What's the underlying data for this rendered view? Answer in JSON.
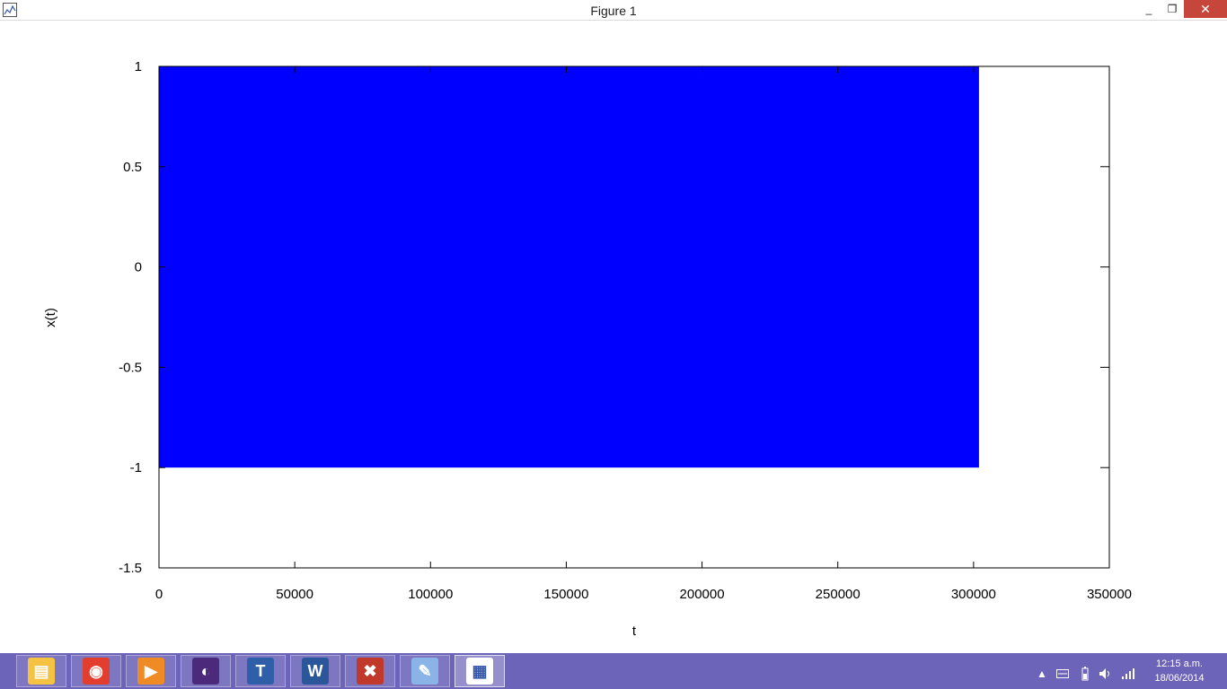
{
  "window": {
    "title": "Figure 1",
    "minimize": "_",
    "maximize": "❐",
    "close": "✕"
  },
  "chart_data": {
    "type": "line",
    "xlabel": "t",
    "ylabel": "x(t)",
    "xlim": [
      0,
      350000
    ],
    "ylim": [
      -1.5,
      1
    ],
    "x_ticks": [
      "0",
      "50000",
      "100000",
      "150000",
      "200000",
      "250000",
      "300000",
      "350000"
    ],
    "y_ticks": [
      "1",
      "0.5",
      "0",
      "-0.5",
      "-1",
      "-1.5"
    ],
    "series": [
      {
        "color": "#0000ff",
        "x_range": [
          0,
          302000
        ],
        "y_range": [
          -1,
          1
        ],
        "description_shape": "dense oscillation filling band"
      }
    ],
    "grid": false
  },
  "taskbar": {
    "items": [
      {
        "name": "file-explorer",
        "icon": "folder-icon",
        "color": "#f5c242"
      },
      {
        "name": "chrome",
        "icon": "chrome-icon",
        "color": "#e33d2e"
      },
      {
        "name": "media-player",
        "icon": "media-player-icon",
        "color": "#f08a24"
      },
      {
        "name": "eclipse",
        "icon": "eclipse-icon",
        "color": "#4b2a7b"
      },
      {
        "name": "text-editor",
        "icon": "text-editor-icon",
        "color": "#2e5fa8"
      },
      {
        "name": "word",
        "icon": "word-icon",
        "color": "#2b579a"
      },
      {
        "name": "tools",
        "icon": "tools-icon",
        "color": "#c0392b"
      },
      {
        "name": "paint",
        "icon": "paint-icon",
        "color": "#8ab4e8"
      },
      {
        "name": "figure",
        "icon": "figure-icon",
        "color": "#ffffff"
      }
    ],
    "clock_time": "12:15 a.m.",
    "clock_date": "18/06/2014"
  }
}
